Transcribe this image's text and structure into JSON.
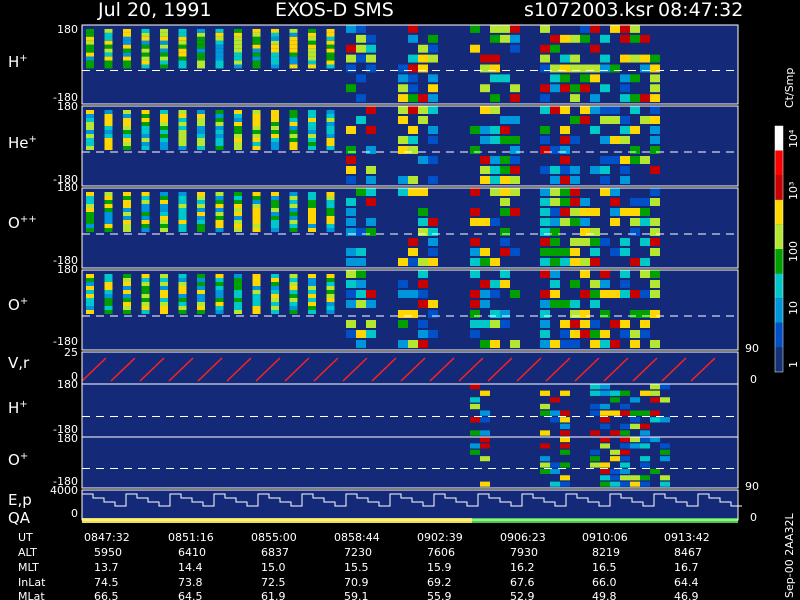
{
  "header": {
    "date": "Jul 20, 1991",
    "instrument": "EXOS-D SMS",
    "filename": "s1072003.ksr",
    "time": "08:47:32"
  },
  "chart_data": {
    "type": "heatmap",
    "panels": [
      {
        "label": "H",
        "sup": "+",
        "ylim": [
          -180,
          180
        ],
        "ticks": [
          "180",
          "-180"
        ]
      },
      {
        "label": "He",
        "sup": "+",
        "ylim": [
          -180,
          180
        ],
        "ticks": [
          "180",
          "-180"
        ]
      },
      {
        "label": "O",
        "sup": "++",
        "ylim": [
          -180,
          180
        ],
        "ticks": [
          "180",
          "-180"
        ]
      },
      {
        "label": "O",
        "sup": "+",
        "ylim": [
          -180,
          180
        ],
        "ticks": [
          "180",
          "-180"
        ],
        "right_tick": "90"
      },
      {
        "label": "V,r",
        "sup": "",
        "ylim": [
          0,
          25
        ],
        "ticks": [
          "25",
          "0"
        ],
        "right_tick": "0"
      },
      {
        "label": "H",
        "sup": "+",
        "ylim": [
          -180,
          180
        ],
        "ticks": [
          "180",
          "-180"
        ]
      },
      {
        "label": "O",
        "sup": "+",
        "ylim": [
          -180,
          180
        ],
        "ticks": [
          "180",
          "-180"
        ],
        "right_tick": "90"
      },
      {
        "label": "E,p",
        "label2": "QA",
        "ylim": [
          0,
          4000
        ],
        "ticks": [
          "4000",
          "0"
        ],
        "right_tick": "0"
      }
    ],
    "colorbar": {
      "label": "Ct/Smp",
      "ticks": [
        "10⁴",
        "10³",
        "100",
        "10",
        "1"
      ],
      "colors": [
        "#ffffff",
        "#ff0000",
        "#c80000",
        "#ffd700",
        "#b4e632",
        "#00a000",
        "#00c8c8",
        "#0096dc",
        "#0050c8",
        "#143278"
      ]
    },
    "time_rows": [
      {
        "name": "UT",
        "values": [
          "0847:32",
          "0851:16",
          "0855:00",
          "0858:44",
          "0902:39",
          "0906:23",
          "0910:06",
          "0913:42"
        ]
      },
      {
        "name": "ALT",
        "values": [
          "5950",
          "6410",
          "6837",
          "7230",
          "7606",
          "7930",
          "8219",
          "8467"
        ]
      },
      {
        "name": "MLT",
        "values": [
          "13.7",
          "14.4",
          "15.0",
          "15.5",
          "15.9",
          "16.2",
          "16.5",
          "16.7"
        ]
      },
      {
        "name": "InLat",
        "values": [
          "74.5",
          "73.8",
          "72.5",
          "70.9",
          "69.2",
          "67.6",
          "66.0",
          "64.4"
        ]
      },
      {
        "name": "MLat",
        "values": [
          "66.5",
          "64.5",
          "61.9",
          "59.1",
          "55.9",
          "52.9",
          "49.8",
          "46.9"
        ]
      }
    ],
    "footer": "Sep-00  2AA32L"
  }
}
